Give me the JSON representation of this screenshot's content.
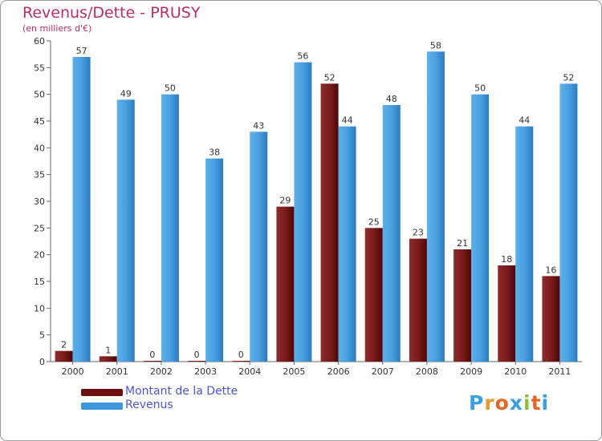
{
  "header": {
    "title": "Revenus/Dette - PRUSY",
    "subtitle": "(en milliers d'€)"
  },
  "colors": {
    "debt": "#7a1c1c",
    "revenue": "#4a9fe0",
    "title": "#b3306a",
    "legend_text": "#4a57d6"
  },
  "legend": {
    "items": [
      {
        "label": "Montant de la Dette",
        "color": "#6b0f0f"
      },
      {
        "label": "Revenus",
        "color": "#3d97df"
      }
    ]
  },
  "logo": {
    "text": "Proxiti",
    "letter_colors": [
      "#3aa0e0",
      "#e89a2a",
      "#e0672a",
      "#3aa0e0",
      "#8dbf3a",
      "#e0672a",
      "#3aa0e0"
    ]
  },
  "chart_data": {
    "type": "bar",
    "categories": [
      "2000",
      "2001",
      "2002",
      "2003",
      "2004",
      "2005",
      "2006",
      "2007",
      "2008",
      "2009",
      "2010",
      "2011"
    ],
    "series": [
      {
        "name": "Montant de la Dette",
        "values": [
          2,
          1,
          0,
          0,
          0,
          29,
          52,
          25,
          23,
          21,
          18,
          16
        ]
      },
      {
        "name": "Revenus",
        "values": [
          57,
          49,
          50,
          38,
          43,
          56,
          44,
          48,
          58,
          50,
          44,
          52
        ]
      }
    ],
    "yticks": [
      0,
      5,
      10,
      15,
      20,
      25,
      30,
      35,
      40,
      45,
      50,
      55,
      60
    ],
    "ylim": [
      0,
      60
    ],
    "grid": false,
    "legend_position": "bottom-left",
    "data_labels": true
  }
}
